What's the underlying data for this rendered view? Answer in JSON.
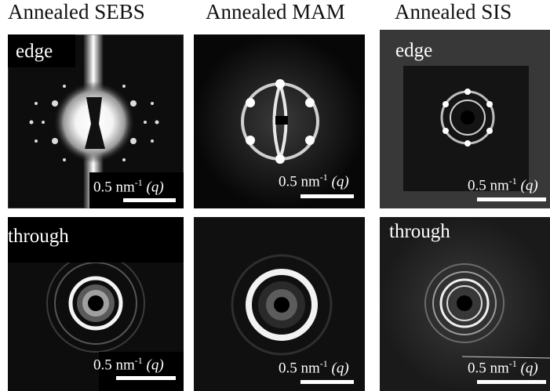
{
  "columns": [
    {
      "title": "Annealed SEBS"
    },
    {
      "title": "Annealed MAM"
    },
    {
      "title": "Annealed SIS"
    }
  ],
  "panels": {
    "sebs_edge": {
      "label": "edge"
    },
    "sis_edge": {
      "label": "edge"
    },
    "sebs_through": {
      "label": "through"
    },
    "sis_through": {
      "label": "through"
    }
  },
  "scale_bar": {
    "value": "0.5 nm",
    "exponent": "-1",
    "unit": "(q)"
  }
}
